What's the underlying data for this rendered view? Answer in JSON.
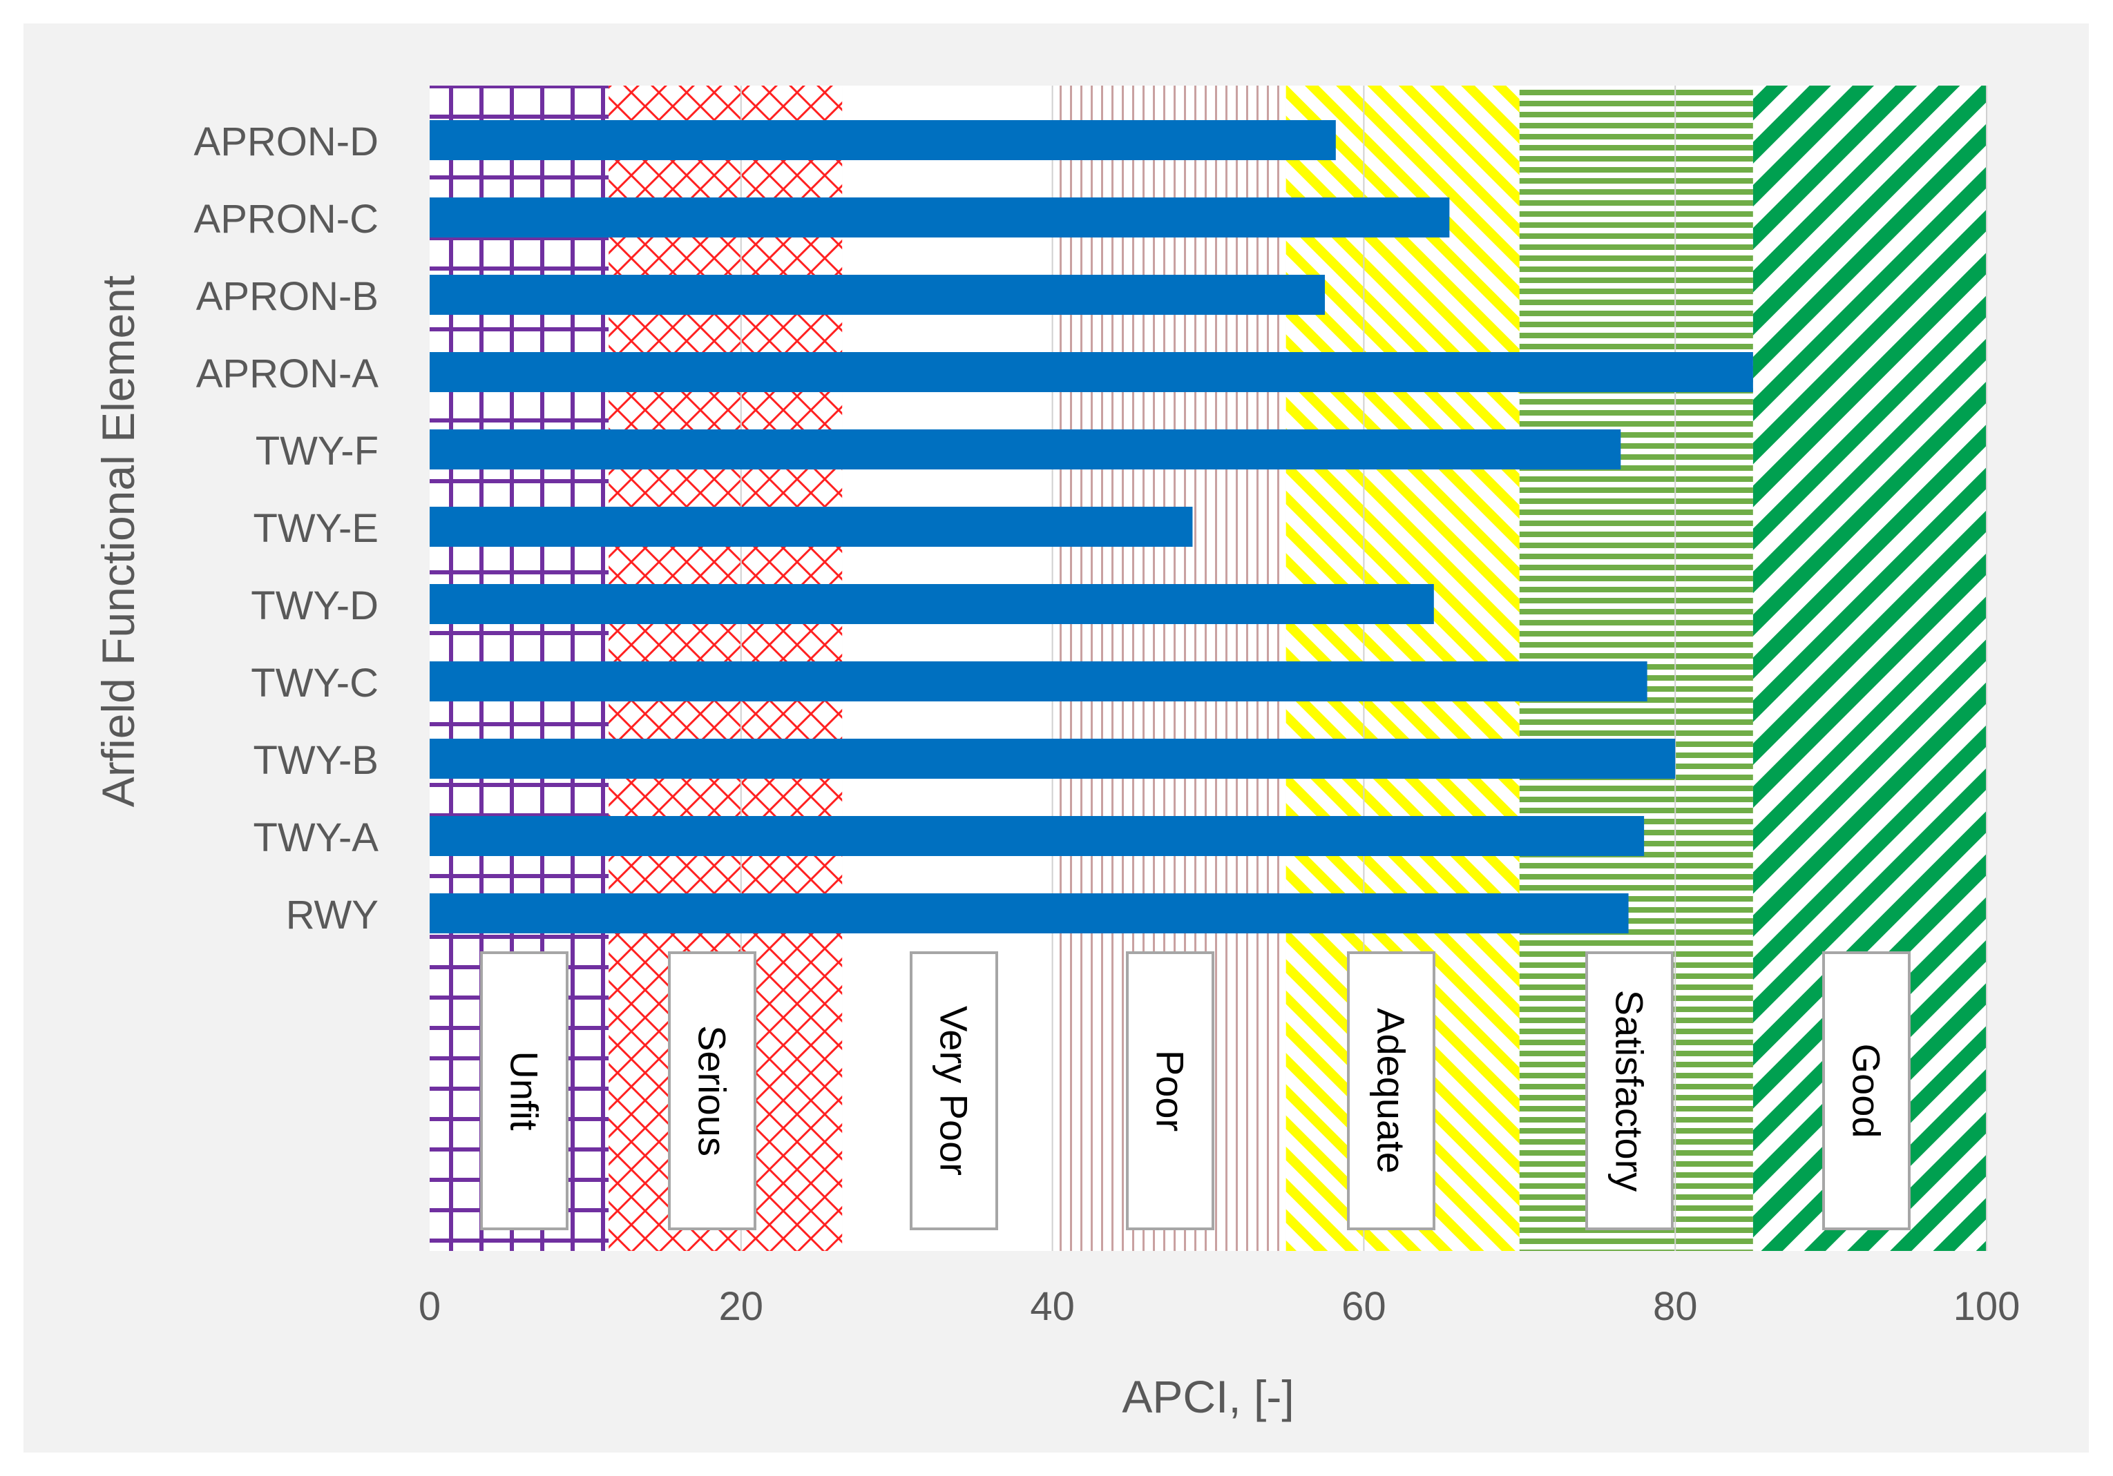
{
  "chart_data": {
    "type": "bar",
    "orientation": "horizontal",
    "categories": [
      "RWY",
      "TWY-A",
      "TWY-B",
      "TWY-C",
      "TWY-D",
      "TWY-E",
      "TWY-F",
      "APRON-A",
      "APRON-B",
      "APRON-C",
      "APRON-D"
    ],
    "values": [
      77,
      78,
      80,
      78.2,
      64.5,
      49,
      76.5,
      85,
      57.5,
      65.5,
      58.2
    ],
    "xlabel": "APCI, [-]",
    "ylabel": "Arfield Functional Element",
    "xlim": [
      0,
      100
    ],
    "xticks": [
      0,
      20,
      40,
      60,
      80,
      100
    ],
    "grid": "vertical",
    "bar_color": "#0070c0",
    "condition_bands": [
      {
        "label": "Unfit",
        "from": 0,
        "to": 11.5,
        "pattern": "grid",
        "color": "#7030a0"
      },
      {
        "label": "Serious",
        "from": 11.5,
        "to": 26.5,
        "pattern": "diamond",
        "color": "#ff2020"
      },
      {
        "label": "Very Poor",
        "from": 26.5,
        "to": 40,
        "pattern": "none",
        "color": "#ffffff"
      },
      {
        "label": "Poor",
        "from": 40,
        "to": 55,
        "pattern": "vertical",
        "color": "#c9a1a1"
      },
      {
        "label": "Adequate",
        "from": 55,
        "to": 70,
        "pattern": "diagonal",
        "color": "#ffff00"
      },
      {
        "label": "Satisfactory",
        "from": 70,
        "to": 85,
        "pattern": "horizontal",
        "color": "#70ad47"
      },
      {
        "label": "Good",
        "from": 85,
        "to": 100,
        "pattern": "diagonal",
        "color": "#00a050"
      }
    ]
  }
}
